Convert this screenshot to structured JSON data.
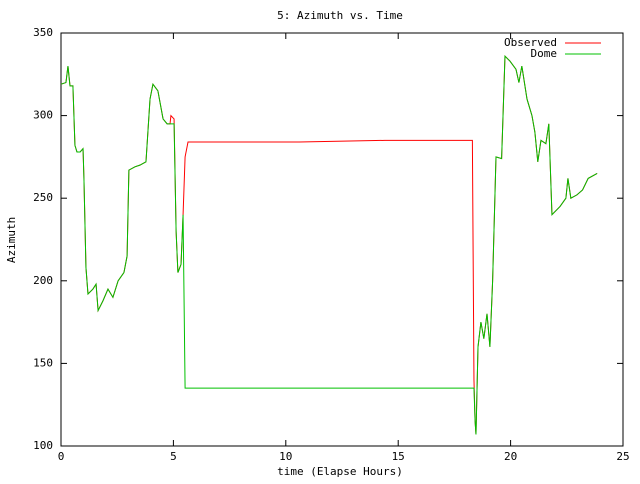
{
  "chart_data": {
    "type": "line",
    "title": "5: Azimuth vs. Time",
    "x_label": "time (Elapse Hours)",
    "y_label": "Azimuth",
    "x": [
      0,
      0.22,
      0.31,
      0.4,
      0.53,
      0.62,
      0.71,
      0.85,
      0.98,
      1.02,
      1.11,
      1.2,
      1.42,
      1.56,
      1.65,
      1.87,
      2.09,
      2.31,
      2.54,
      2.8,
      2.94,
      3.02,
      3.29,
      3.51,
      3.78,
      3.96,
      4.09,
      4.31,
      4.54,
      4.72,
      4.85,
      4.89,
      5.03,
      5.12,
      5.2,
      5.34,
      5.43,
      5.52,
      5.65,
      10.6,
      14.4,
      18.2,
      18.3,
      18.37,
      18.42,
      18.46,
      18.55,
      18.68,
      18.81,
      18.95,
      19.08,
      19.2,
      19.35,
      19.6,
      19.75,
      19.97,
      20.24,
      20.37,
      20.5,
      20.73,
      20.95,
      21.08,
      21.21,
      21.35,
      21.57,
      21.7,
      21.84,
      22.2,
      22.46,
      22.55,
      22.68,
      22.95,
      23.2,
      23.45,
      23.85
    ],
    "series": [
      {
        "name": "Observed",
        "color": "#ff0000",
        "values": [
          319,
          320,
          330,
          318,
          318,
          282,
          278,
          278,
          280,
          262,
          208,
          192,
          195,
          198,
          182,
          188,
          195,
          190,
          200,
          205,
          215,
          267,
          269,
          270,
          272,
          310,
          319,
          315,
          298,
          295,
          295,
          300,
          298,
          230,
          205,
          210,
          240,
          275,
          284,
          284,
          285,
          285,
          285,
          140,
          115,
          107,
          160,
          175,
          165,
          180,
          160,
          200,
          275,
          274,
          336,
          333,
          328,
          320,
          330,
          310,
          300,
          290,
          272,
          285,
          283,
          295,
          240,
          245,
          250,
          262,
          250,
          252,
          255,
          262,
          265
        ]
      },
      {
        "name": "Dome",
        "color": "#00c000",
        "values": [
          319,
          320,
          330,
          318,
          318,
          282,
          278,
          278,
          280,
          262,
          208,
          192,
          195,
          198,
          182,
          188,
          195,
          190,
          200,
          205,
          215,
          267,
          269,
          270,
          272,
          310,
          319,
          315,
          298,
          295,
          295,
          295,
          295,
          230,
          205,
          210,
          240,
          135,
          135,
          135,
          135,
          135,
          135,
          135,
          115,
          107,
          160,
          175,
          165,
          180,
          160,
          200,
          275,
          274,
          336,
          333,
          328,
          320,
          330,
          310,
          300,
          290,
          272,
          285,
          283,
          295,
          240,
          245,
          250,
          262,
          250,
          252,
          255,
          262,
          265
        ]
      }
    ],
    "xlim": [
      0,
      25
    ],
    "xticks": [
      0,
      5,
      10,
      15,
      20,
      25
    ],
    "ylim": [
      100,
      350
    ],
    "yticks": [
      100,
      150,
      200,
      250,
      300,
      350
    ],
    "grid": false,
    "legend": "top-right"
  }
}
